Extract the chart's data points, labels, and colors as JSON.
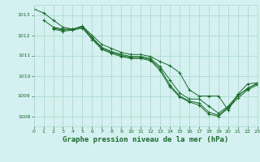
{
  "background_color": "#d4f0f0",
  "grid_color": "#aaddcc",
  "line_color": "#1a6b2a",
  "title": "Graphe pression niveau de la mer (hPa)",
  "title_fontsize": 6.5,
  "xlim": [
    0,
    23
  ],
  "ylim": [
    1007.5,
    1013.5
  ],
  "yticks": [
    1008,
    1009,
    1010,
    1011,
    1012,
    1013
  ],
  "xticks": [
    0,
    1,
    2,
    3,
    4,
    5,
    6,
    7,
    8,
    9,
    10,
    11,
    12,
    13,
    14,
    15,
    16,
    17,
    18,
    19,
    20,
    21,
    22,
    23
  ],
  "line1": {
    "x": [
      0,
      1,
      2,
      3,
      4,
      5,
      6,
      7,
      8,
      9,
      10,
      11,
      12,
      13,
      14,
      15,
      16,
      17,
      18,
      19,
      20,
      21,
      22,
      23
    ],
    "y": [
      1013.3,
      1013.1,
      1012.75,
      1012.4,
      1012.3,
      1012.45,
      1012.0,
      1011.55,
      1011.35,
      1011.15,
      1011.05,
      1011.05,
      1010.95,
      1010.7,
      1010.5,
      1010.15,
      1009.3,
      1009.0,
      1009.0,
      1009.0,
      1008.3,
      1009.1,
      1009.6,
      1009.65
    ]
  },
  "line2": {
    "x": [
      1,
      2,
      3,
      4,
      5,
      6,
      7,
      8,
      9,
      10,
      11,
      12,
      13,
      14,
      15,
      16,
      17,
      18,
      19,
      20,
      21,
      22,
      23
    ],
    "y": [
      1012.75,
      1012.4,
      1012.3,
      1012.3,
      1012.45,
      1011.9,
      1011.4,
      1011.2,
      1011.05,
      1010.95,
      1010.95,
      1010.85,
      1010.45,
      1009.8,
      1009.15,
      1008.85,
      1008.85,
      1008.5,
      1008.15,
      1008.5,
      1009.05,
      1009.35,
      1009.65
    ]
  },
  "line3": {
    "x": [
      2,
      3,
      4,
      5,
      6,
      7,
      8,
      9,
      10,
      11,
      12,
      13,
      14,
      15,
      16,
      17,
      18,
      19,
      20,
      21,
      22,
      23
    ],
    "y": [
      1012.35,
      1012.25,
      1012.3,
      1012.4,
      1011.85,
      1011.35,
      1011.15,
      1011.0,
      1010.9,
      1010.9,
      1010.8,
      1010.35,
      1009.55,
      1009.0,
      1008.75,
      1008.65,
      1008.2,
      1008.05,
      1008.45,
      1009.0,
      1009.4,
      1009.6
    ]
  },
  "line4": {
    "x": [
      2,
      3,
      4,
      5,
      6,
      7,
      8,
      9,
      10,
      11,
      12,
      13,
      14,
      15,
      16,
      17,
      18,
      19,
      20,
      21,
      22,
      23
    ],
    "y": [
      1012.3,
      1012.2,
      1012.25,
      1012.35,
      1011.8,
      1011.3,
      1011.1,
      1010.95,
      1010.85,
      1010.85,
      1010.75,
      1010.25,
      1009.45,
      1008.95,
      1008.7,
      1008.55,
      1008.1,
      1008.0,
      1008.4,
      1008.9,
      1009.3,
      1009.55
    ]
  }
}
